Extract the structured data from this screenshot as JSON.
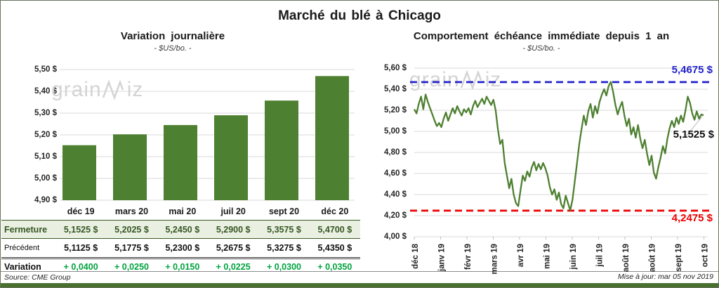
{
  "page": {
    "title": "Marché du blé à Chicago",
    "source": "Source: CME Group",
    "updated": "Mise à jour: mar 05 nov 2019",
    "watermark": {
      "part1": "grain",
      "part2": "iz"
    }
  },
  "colors": {
    "green": "#4e8031",
    "grid": "#d9d9d9",
    "high_blue": "#2222cc",
    "low_red": "#ee0000",
    "variation_green": "#00a33e",
    "fermeture_bg": "#e9f0e2",
    "fermeture_text": "#375623",
    "watermark_gray": "#d4d4d4"
  },
  "chart_data": [
    {
      "type": "bar",
      "title": "Variation journalière",
      "subtitle": "- $US/bo. -",
      "categories": [
        "déc 19",
        "mars 20",
        "mai 20",
        "juil 20",
        "sept 20",
        "déc 20"
      ],
      "values": [
        5.1525,
        5.2025,
        5.245,
        5.29,
        5.3575,
        5.47
      ],
      "ylim": [
        4.9,
        5.5
      ],
      "ytick_step": 0.1,
      "ytick_labels": [
        "5,50 $",
        "5,40 $",
        "5,30 $",
        "5,20 $",
        "5,10 $",
        "5,00 $",
        "4,90 $"
      ],
      "grid": true,
      "bar_color": "#4e8031"
    },
    {
      "type": "line",
      "title": "Comportement échéance immédiate depuis 1 an",
      "subtitle": "- $US/bo. -",
      "x_tick_labels": [
        "déc 18",
        "janv 19",
        "févr 19",
        "mars 19",
        "avr 19",
        "mai 19",
        "juin 19",
        "juil 19",
        "août 19",
        "août 19",
        "sept 19",
        "oct 19"
      ],
      "values": [
        5.21,
        5.17,
        5.26,
        5.33,
        5.21,
        5.35,
        5.28,
        5.22,
        5.16,
        5.1,
        5.05,
        5.08,
        5.04,
        5.12,
        5.18,
        5.1,
        5.16,
        5.22,
        5.17,
        5.24,
        5.19,
        5.15,
        5.21,
        5.18,
        5.22,
        5.16,
        5.24,
        5.29,
        5.23,
        5.27,
        5.31,
        5.26,
        5.33,
        5.29,
        5.25,
        5.3,
        5.2,
        5.02,
        4.88,
        4.92,
        4.7,
        4.58,
        4.46,
        4.55,
        4.4,
        4.32,
        4.29,
        4.44,
        4.58,
        4.53,
        4.62,
        4.57,
        4.66,
        4.71,
        4.63,
        4.69,
        4.64,
        4.7,
        4.65,
        4.58,
        4.47,
        4.4,
        4.45,
        4.35,
        4.42,
        4.31,
        4.27,
        4.39,
        4.32,
        4.25,
        4.35,
        4.52,
        4.7,
        4.88,
        5.02,
        5.15,
        5.06,
        5.19,
        5.26,
        5.13,
        5.24,
        5.17,
        5.28,
        5.35,
        5.4,
        5.34,
        5.43,
        5.47,
        5.37,
        5.25,
        5.16,
        5.23,
        5.28,
        5.15,
        5.05,
        5.12,
        4.97,
        5.04,
        4.94,
        5.06,
        4.93,
        4.84,
        4.92,
        4.79,
        4.68,
        4.77,
        4.61,
        4.55,
        4.66,
        4.75,
        4.86,
        4.79,
        4.93,
        5.03,
        5.1,
        5.04,
        5.13,
        5.07,
        5.15,
        5.09,
        5.2,
        5.33,
        5.27,
        5.17,
        5.11,
        5.19,
        5.12,
        5.16,
        5.1525
      ],
      "ylim": [
        4.0,
        5.6
      ],
      "ytick_step": 0.2,
      "ytick_labels": [
        "5,60 $",
        "5,40 $",
        "5,20 $",
        "5,00 $",
        "4,80 $",
        "4,60 $",
        "4,40 $",
        "4,20 $",
        "4,00 $"
      ],
      "grid": true,
      "line_color": "#4e8031",
      "high_line": {
        "value": 5.4675,
        "label": "5,4675 $",
        "color": "#2222cc"
      },
      "low_line": {
        "value": 4.2475,
        "label": "4,2475 $",
        "color": "#ee0000"
      },
      "last_point": {
        "value": 5.1525,
        "label": "5,1525 $",
        "color": "#111111"
      }
    }
  ],
  "table": {
    "columns": [
      "déc 19",
      "mars 20",
      "mai 20",
      "juil 20",
      "sept 20",
      "déc 20"
    ],
    "rows": [
      {
        "label": "Fermeture",
        "values": [
          "5,1525 $",
          "5,2025 $",
          "5,2450 $",
          "5,2900 $",
          "5,3575 $",
          "5,4700 $"
        ]
      },
      {
        "label": "Précédent",
        "values": [
          "5,1125 $",
          "5,1775 $",
          "5,2300 $",
          "5,2675 $",
          "5,3275 $",
          "5,4350 $"
        ]
      },
      {
        "label": "Variation",
        "values": [
          "+ 0,0400",
          "+ 0,0250",
          "+ 0,0150",
          "+ 0,0225",
          "+ 0,0300",
          "+ 0,0350"
        ]
      }
    ]
  }
}
